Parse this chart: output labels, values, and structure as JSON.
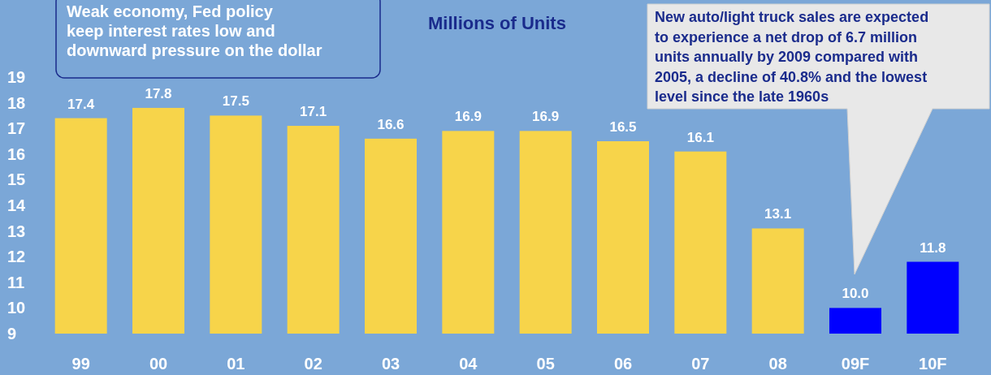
{
  "chart_data": {
    "type": "bar",
    "title": "Millions of Units",
    "categories": [
      "99",
      "00",
      "01",
      "02",
      "03",
      "04",
      "05",
      "06",
      "07",
      "08",
      "09F",
      "10F"
    ],
    "values": [
      17.4,
      17.8,
      17.5,
      17.1,
      16.6,
      16.9,
      16.9,
      16.5,
      16.1,
      13.1,
      10.0,
      11.8
    ],
    "colors": [
      "#f7d44a",
      "#f7d44a",
      "#f7d44a",
      "#f7d44a",
      "#f7d44a",
      "#f7d44a",
      "#f7d44a",
      "#f7d44a",
      "#f7d44a",
      "#f7d44a",
      "#0000ff",
      "#0000ff"
    ],
    "value_labels": [
      "17.4",
      "17.8",
      "17.5",
      "17.1",
      "16.6",
      "16.9",
      "16.9",
      "16.5",
      "16.1",
      "13.1",
      "10.0",
      "11.8"
    ],
    "ylim": [
      9,
      19
    ],
    "yticks": [
      9,
      10,
      11,
      12,
      13,
      14,
      15,
      16,
      17,
      18,
      19
    ],
    "grid": false,
    "annotations": [
      "Weak economy, Fed policy\nkeep interest rates low and\ndownward pressure on the dollar",
      "New auto/light truck sales are expected\nto experience a net drop of 6.7 million\nunits annually by 2009 compared with\n2005, a decline of 40.8% and the lowest\nlevel since the late 1960s"
    ]
  }
}
